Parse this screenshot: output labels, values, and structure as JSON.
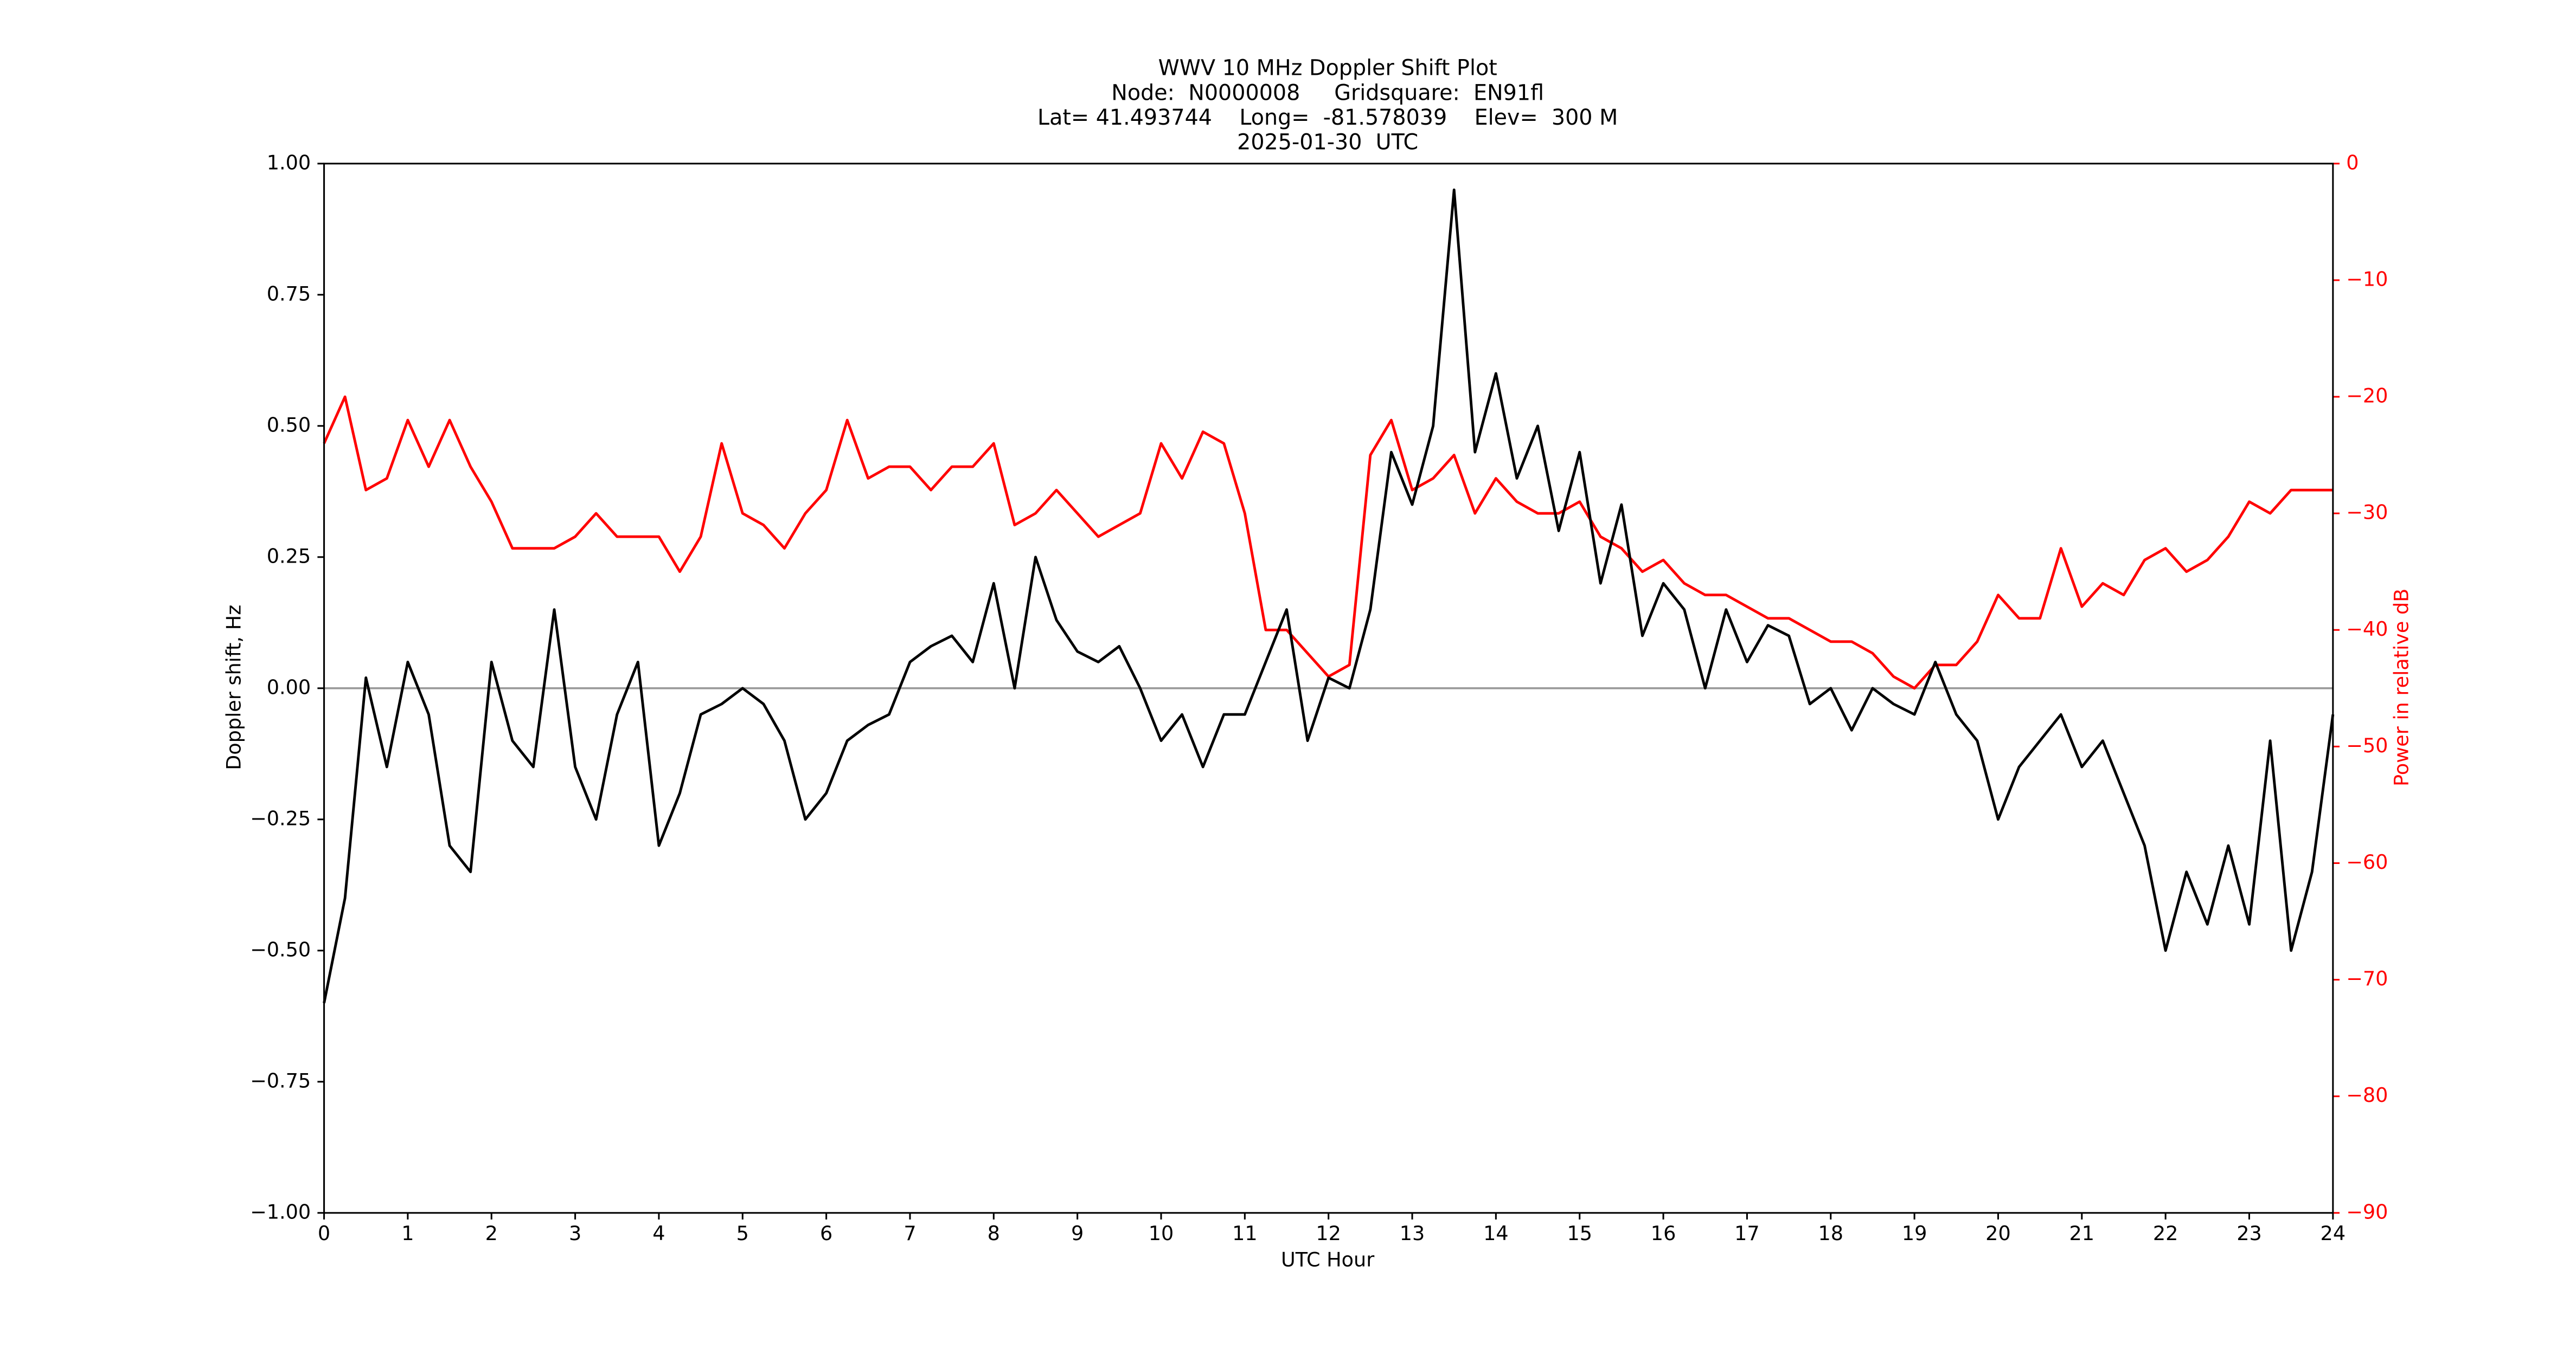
{
  "chart_data": {
    "type": "line",
    "title": [
      "WWV 10 MHz Doppler Shift Plot",
      "Node:  N0000008     Gridsquare:  EN91fl",
      "Lat= 41.493744    Long=  -81.578039    Elev=  300 M",
      "2025-01-30  UTC"
    ],
    "x_label": "UTC Hour",
    "y_label": "Doppler shift, Hz",
    "y2_label": "Power in relative dB",
    "y2_color": "#ff0000",
    "x": [
      0,
      0.25,
      0.5,
      0.75,
      1,
      1.25,
      1.5,
      1.75,
      2,
      2.25,
      2.5,
      2.75,
      3,
      3.25,
      3.5,
      3.75,
      4,
      4.25,
      4.5,
      4.75,
      5,
      5.25,
      5.5,
      5.75,
      6,
      6.25,
      6.5,
      6.75,
      7,
      7.25,
      7.5,
      7.75,
      8,
      8.25,
      8.5,
      8.75,
      9,
      9.25,
      9.5,
      9.75,
      10,
      10.25,
      10.5,
      10.75,
      11,
      11.25,
      11.5,
      11.75,
      12,
      12.25,
      12.5,
      12.75,
      13,
      13.25,
      13.5,
      13.75,
      14,
      14.25,
      14.5,
      14.75,
      15,
      15.25,
      15.5,
      15.75,
      16,
      16.25,
      16.5,
      16.75,
      17,
      17.25,
      17.5,
      17.75,
      18,
      18.25,
      18.5,
      18.75,
      19,
      19.25,
      19.5,
      19.75,
      20,
      20.25,
      20.5,
      20.75,
      21,
      21.25,
      21.5,
      21.75,
      22,
      22.25,
      22.5,
      22.75,
      23,
      23.25,
      23.5,
      23.75,
      24
    ],
    "series": [
      {
        "name": "Doppler shift",
        "color": "#000000",
        "values": [
          -0.6,
          -0.4,
          0.02,
          -0.15,
          0.05,
          -0.05,
          -0.3,
          -0.35,
          0.05,
          -0.1,
          -0.15,
          0.15,
          -0.15,
          -0.25,
          -0.05,
          0.05,
          -0.3,
          -0.2,
          -0.05,
          -0.03,
          0.0,
          -0.03,
          -0.1,
          -0.25,
          -0.2,
          -0.1,
          -0.07,
          -0.05,
          0.05,
          0.08,
          0.1,
          0.05,
          0.2,
          0.0,
          0.25,
          0.13,
          0.07,
          0.05,
          0.08,
          0.0,
          -0.1,
          -0.05,
          -0.15,
          -0.05,
          -0.05,
          0.05,
          0.15,
          -0.1,
          0.02,
          0.0,
          0.15,
          0.45,
          0.35,
          0.5,
          0.95,
          0.45,
          0.6,
          0.4,
          0.5,
          0.3,
          0.45,
          0.2,
          0.35,
          0.1,
          0.2,
          0.15,
          0.0,
          0.15,
          0.05,
          0.12,
          0.1,
          -0.03,
          0.0,
          -0.08,
          0.0,
          -0.03,
          -0.05,
          0.05,
          -0.05,
          -0.1,
          -0.25,
          -0.15,
          -0.1,
          -0.05,
          -0.15,
          -0.1,
          -0.2,
          -0.3,
          -0.5,
          -0.35,
          -0.45,
          -0.3,
          -0.45,
          -0.1,
          -0.5,
          -0.35,
          -0.05
        ]
      },
      {
        "name": "Power",
        "color": "#ff0000",
        "axis": "y2",
        "values": [
          -24,
          -20,
          -28,
          -27,
          -22,
          -26,
          -22,
          -26,
          -29,
          -33,
          -33,
          -33,
          -32,
          -30,
          -32,
          -32,
          -32,
          -35,
          -32,
          -24,
          -30,
          -31,
          -33,
          -30,
          -28,
          -22,
          -27,
          -26,
          -26,
          -28,
          -26,
          -26,
          -24,
          -31,
          -30,
          -28,
          -30,
          -32,
          -31,
          -30,
          -24,
          -27,
          -23,
          -24,
          -30,
          -40,
          -40,
          -42,
          -44,
          -43,
          -25,
          -22,
          -28,
          -27,
          -25,
          -30,
          -27,
          -29,
          -30,
          -30,
          -29,
          -32,
          -33,
          -35,
          -34,
          -36,
          -37,
          -37,
          -38,
          -39,
          -39,
          -40,
          -41,
          -41,
          -42,
          -44,
          -45,
          -43,
          -43,
          -41,
          -37,
          -39,
          -39,
          -33,
          -38,
          -36,
          -37,
          -34,
          -33,
          -35,
          -34,
          -32,
          -29,
          -30,
          -28,
          -28,
          -28
        ]
      }
    ],
    "xlim": [
      0,
      24
    ],
    "xticks": [
      0,
      1,
      2,
      3,
      4,
      5,
      6,
      7,
      8,
      9,
      10,
      11,
      12,
      13,
      14,
      15,
      16,
      17,
      18,
      19,
      20,
      21,
      22,
      23,
      24
    ],
    "ylim": [
      -1,
      1
    ],
    "yticks": [
      {
        "value": -1,
        "label": "−1.00"
      },
      {
        "value": -0.75,
        "label": "−0.75"
      },
      {
        "value": -0.5,
        "label": "−0.50"
      },
      {
        "value": -0.25,
        "label": "−0.25"
      },
      {
        "value": 0,
        "label": "0.00"
      },
      {
        "value": 0.25,
        "label": "0.25"
      },
      {
        "value": 0.5,
        "label": "0.50"
      },
      {
        "value": 0.75,
        "label": "0.75"
      },
      {
        "value": 1,
        "label": "1.00"
      }
    ],
    "y2lim": [
      -90,
      0
    ],
    "y2ticks": [
      {
        "value": -90,
        "label": "−90"
      },
      {
        "value": -80,
        "label": "−80"
      },
      {
        "value": -70,
        "label": "−70"
      },
      {
        "value": -60,
        "label": "−60"
      },
      {
        "value": -50,
        "label": "−50"
      },
      {
        "value": -40,
        "label": "−40"
      },
      {
        "value": -30,
        "label": "−30"
      },
      {
        "value": -20,
        "label": "−20"
      },
      {
        "value": -10,
        "label": "−10"
      },
      0
    ],
    "hline": 0,
    "hline_color": "#999999"
  }
}
